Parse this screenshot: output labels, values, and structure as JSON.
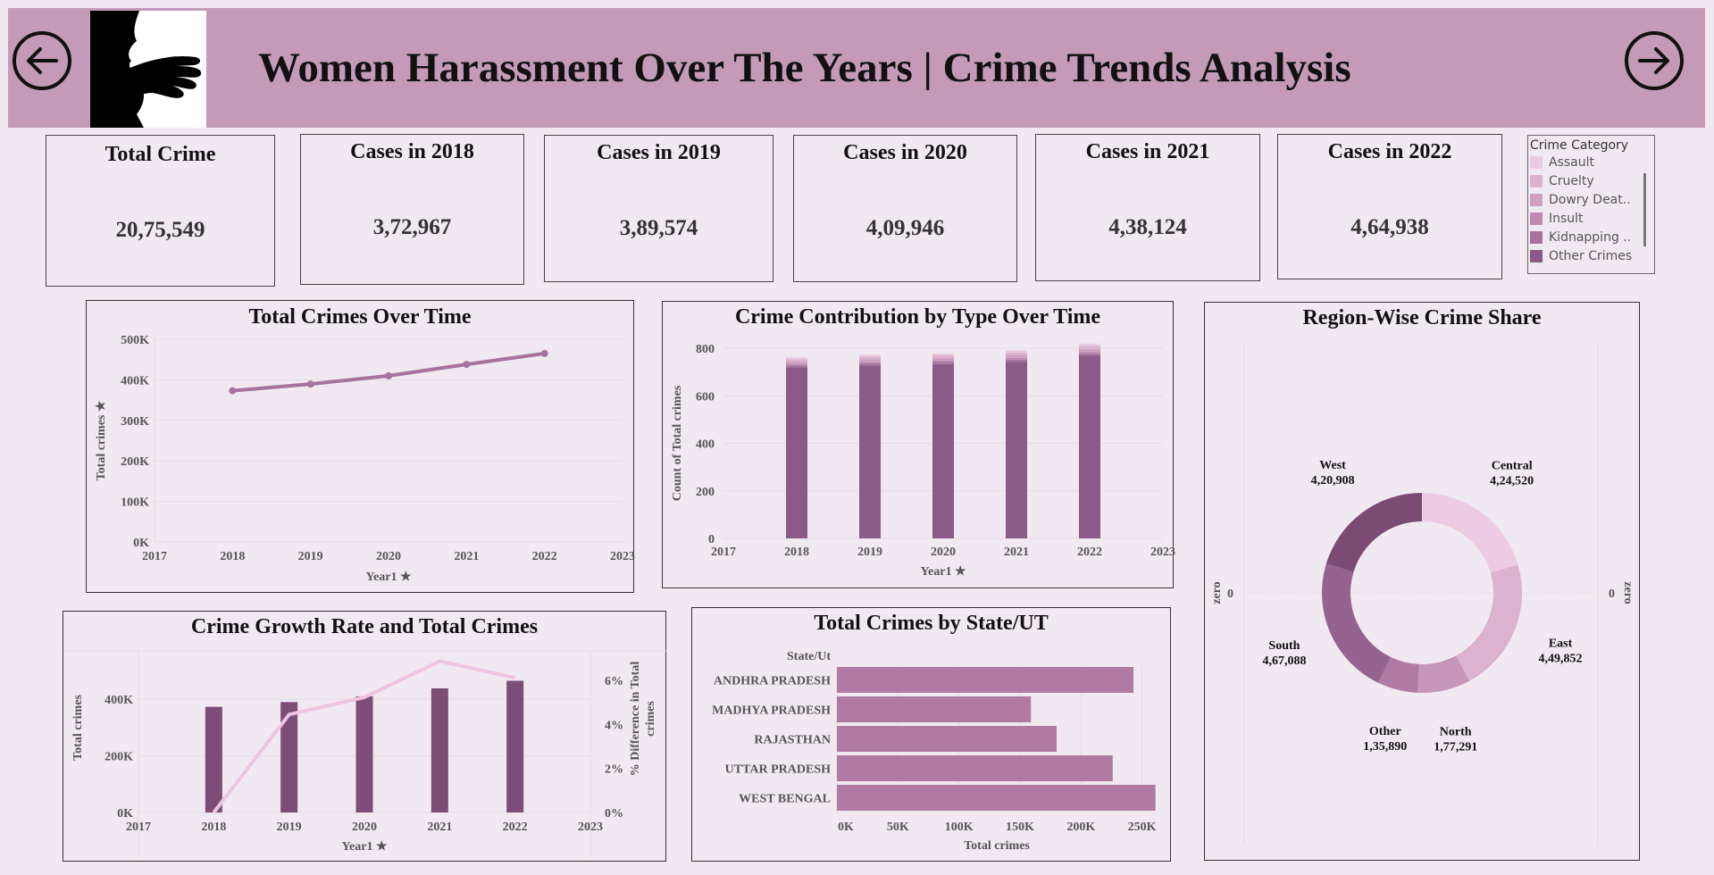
{
  "header": {
    "title": "Women Harassment Over The Years | Crime Trends Analysis",
    "back_icon": "arrow-left-circle-icon",
    "forward_icon": "arrow-right-circle-icon",
    "logo_icon": "hand-over-mouth-silhouette-icon"
  },
  "kpis": [
    {
      "label": "Total Crime",
      "value": "20,75,549"
    },
    {
      "label": "Cases in 2018",
      "value": "3,72,967"
    },
    {
      "label": "Cases in 2019",
      "value": "3,89,574"
    },
    {
      "label": "Cases in 2020",
      "value": "4,09,946"
    },
    {
      "label": "Cases in 2021",
      "value": "4,38,124"
    },
    {
      "label": "Cases in 2022",
      "value": "4,64,938"
    }
  ],
  "legend": {
    "title": "Crime Category",
    "items": [
      {
        "label": "Assault",
        "color": "#eccbe2"
      },
      {
        "label": "Cruelty",
        "color": "#ddb2d1"
      },
      {
        "label": "Dowry Deat..",
        "color": "#cfa0c2"
      },
      {
        "label": "Insult",
        "color": "#be8ab1"
      },
      {
        "label": "Kidnapping ..",
        "color": "#a7729c"
      },
      {
        "label": "Other Crimes",
        "color": "#8c5a86"
      }
    ]
  },
  "colors": {
    "header_bg": "#c49ab8",
    "page_bg": "#f1e9f1",
    "line": "#a8729e",
    "bar_dark": "#8c5a86",
    "bar_growth": "#7d4c77",
    "growth_line": "#efc4e2",
    "hbar": "#b07aa2"
  },
  "chart_data": [
    {
      "id": "total_crimes_over_time",
      "type": "line",
      "title": "Total Crimes Over Time",
      "xlabel": "Year1",
      "ylabel": "Total crimes",
      "x_ticks": [
        "2017",
        "2018",
        "2019",
        "2020",
        "2021",
        "2022",
        "2023"
      ],
      "y_ticks": [
        "0K",
        "100K",
        "200K",
        "300K",
        "400K",
        "500K"
      ],
      "ylim": [
        0,
        500000
      ],
      "x": [
        2018,
        2019,
        2020,
        2021,
        2022
      ],
      "values": [
        372967,
        389574,
        409946,
        438124,
        464938
      ]
    },
    {
      "id": "crime_contribution_by_type",
      "type": "bar",
      "stacked": true,
      "title": "Crime Contribution by Type Over Time",
      "xlabel": "Year1",
      "ylabel": "Count of Total crimes",
      "x_ticks": [
        "2017",
        "2018",
        "2019",
        "2020",
        "2021",
        "2022",
        "2023"
      ],
      "y_ticks": [
        "0",
        "200",
        "400",
        "600",
        "800"
      ],
      "ylim": [
        0,
        800
      ],
      "categories": [
        "2018",
        "2019",
        "2020",
        "2021",
        "2022"
      ],
      "series": [
        {
          "name": "Other Crimes",
          "values": [
            720,
            728,
            733,
            742,
            768
          ]
        },
        {
          "name": "Kidnapping ..",
          "values": [
            8,
            8,
            9,
            10,
            10
          ]
        },
        {
          "name": "Insult",
          "values": [
            7,
            7,
            7,
            8,
            8
          ]
        },
        {
          "name": "Dowry Deat..",
          "values": [
            9,
            10,
            10,
            10,
            11
          ]
        },
        {
          "name": "Cruelty",
          "values": [
            10,
            12,
            11,
            12,
            13
          ]
        },
        {
          "name": "Assault",
          "values": [
            8,
            9,
            8,
            9,
            9
          ]
        }
      ]
    },
    {
      "id": "region_wise_crime_share",
      "type": "pie",
      "donut": true,
      "title": "Region-Wise Crime Share",
      "axis_zero_label": "0",
      "axis_side_label": "zero",
      "slices": [
        {
          "label": "Central",
          "value": 424520,
          "value_text": "4,24,520",
          "color": "#eecbe4"
        },
        {
          "label": "East",
          "value": 449852,
          "value_text": "4,49,852",
          "color": "#ddb1d0"
        },
        {
          "label": "North",
          "value": 177291,
          "value_text": "1,77,291",
          "color": "#c895bb"
        },
        {
          "label": "Other",
          "value": 135890,
          "value_text": "1,35,890",
          "color": "#b07aa4"
        },
        {
          "label": "South",
          "value": 467088,
          "value_text": "4,67,088",
          "color": "#96628f"
        },
        {
          "label": "West",
          "value": 420908,
          "value_text": "4,20,908",
          "color": "#7b4a75"
        }
      ]
    },
    {
      "id": "crime_growth_rate",
      "type": "bar",
      "title": "Crime Growth Rate and Total Crimes",
      "xlabel": "Year1",
      "ylabel": "Total crimes",
      "y2label": "% Difference in Total crimes",
      "x_ticks": [
        "2017",
        "2018",
        "2019",
        "2020",
        "2021",
        "2022",
        "2023"
      ],
      "y_ticks": [
        "0K",
        "200K",
        "400K"
      ],
      "y2_ticks": [
        "0%",
        "2%",
        "4%",
        "6%"
      ],
      "ylim": [
        0,
        500000
      ],
      "y2lim": [
        0,
        7.2
      ],
      "categories": [
        "2018",
        "2019",
        "2020",
        "2021",
        "2022"
      ],
      "series": [
        {
          "name": "Total crimes",
          "values": [
            372967,
            389574,
            409946,
            438124,
            464938
          ]
        },
        {
          "name": "% Difference in Total crimes",
          "values": [
            0,
            4.45,
            5.23,
            6.87,
            6.12
          ]
        }
      ]
    },
    {
      "id": "total_crimes_by_state",
      "type": "bar",
      "orientation": "horizontal",
      "title": "Total Crimes by State/UT",
      "xlabel": "Total crimes",
      "ylabel": "State/Ut",
      "x_ticks": [
        "0K",
        "50K",
        "100K",
        "150K",
        "200K",
        "250K"
      ],
      "xlim": [
        0,
        262000
      ],
      "categories": [
        "ANDHRA PRADESH",
        "MADHYA PRADESH",
        "RAJASTHAN",
        "UTTAR PRADESH",
        "WEST BENGAL"
      ],
      "values": [
        243000,
        159000,
        180000,
        226000,
        261000
      ]
    }
  ]
}
